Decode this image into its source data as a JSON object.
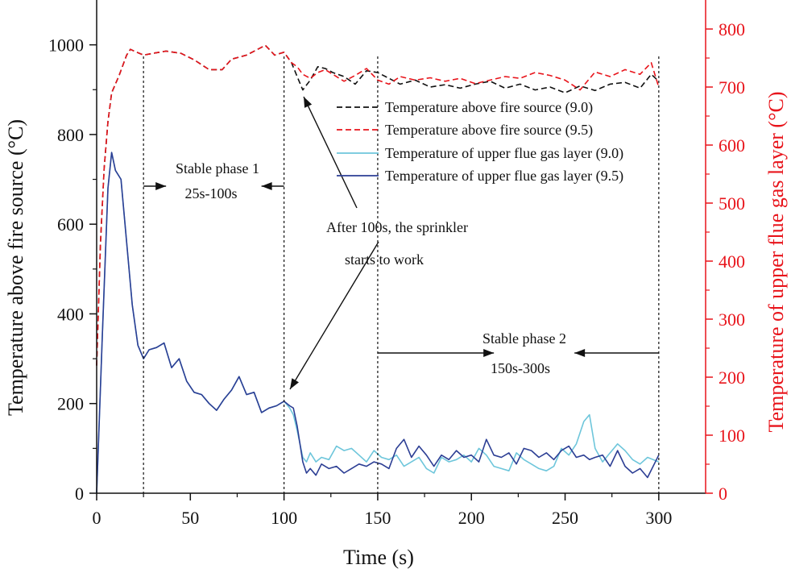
{
  "chart_data": {
    "type": "line",
    "xlabel": "Time (s)",
    "ylabel_left": "Temperature above fire source (°C)",
    "ylabel_right": "Temperature of upper flue gas layer (°C)",
    "xlim": [
      0,
      325
    ],
    "ylim_left": [
      0,
      1100
    ],
    "ylim_right": [
      0,
      850
    ],
    "x_ticks": [
      0,
      50,
      100,
      150,
      200,
      250,
      300
    ],
    "y_left_ticks": [
      0,
      200,
      400,
      600,
      800,
      1000
    ],
    "y_right_ticks": [
      0,
      100,
      200,
      300,
      400,
      500,
      600,
      700,
      800
    ],
    "x_tick_labels": [
      "0",
      "50",
      "100",
      "150",
      "200",
      "250",
      "300"
    ],
    "y_left_tick_labels": [
      "0",
      "200",
      "400",
      "600",
      "800",
      "1000"
    ],
    "y_right_tick_labels": [
      "0",
      "100",
      "200",
      "300",
      "400",
      "500",
      "600",
      "700",
      "800"
    ],
    "series": [
      {
        "name": "Temperature above fire source (9.0)",
        "axis": "right",
        "color": "#111111",
        "dash": "dashed",
        "x": [
          0,
          2,
          4,
          6,
          8,
          12,
          16,
          18,
          20,
          25,
          30,
          37,
          45,
          52,
          60,
          67,
          72,
          80,
          90,
          95,
          100,
          104,
          107,
          110,
          114,
          118,
          122,
          126,
          132,
          138,
          144,
          150,
          156,
          162,
          170,
          178,
          186,
          194,
          202,
          210,
          218,
          226,
          234,
          242,
          250,
          258,
          266,
          274,
          282,
          290,
          296,
          300
        ],
        "y": [
          220,
          430,
          560,
          640,
          690,
          720,
          755,
          765,
          762,
          755,
          758,
          762,
          758,
          747,
          730,
          730,
          748,
          755,
          772,
          755,
          760,
          742,
          718,
          695,
          712,
          735,
          732,
          725,
          718,
          705,
          728,
          725,
          715,
          705,
          712,
          700,
          704,
          698,
          705,
          710,
          698,
          705,
          695,
          700,
          690,
          702,
          694,
          705,
          708,
          698,
          722,
          710
        ]
      },
      {
        "name": "Temperature above fire source (9.5)",
        "axis": "right",
        "color": "#e8141b",
        "dash": "dashed",
        "x": [
          0,
          2,
          4,
          6,
          8,
          12,
          16,
          18,
          20,
          25,
          30,
          37,
          45,
          52,
          60,
          67,
          72,
          80,
          90,
          95,
          100,
          104,
          107,
          110,
          114,
          118,
          122,
          126,
          132,
          138,
          144,
          150,
          156,
          162,
          170,
          178,
          186,
          194,
          202,
          210,
          218,
          226,
          234,
          242,
          250,
          258,
          266,
          274,
          282,
          290,
          296,
          300
        ],
        "y": [
          220,
          430,
          560,
          640,
          690,
          720,
          755,
          765,
          762,
          755,
          758,
          762,
          758,
          747,
          730,
          730,
          748,
          755,
          772,
          755,
          760,
          742,
          735,
          722,
          715,
          725,
          730,
          722,
          710,
          720,
          732,
          712,
          705,
          718,
          712,
          716,
          710,
          715,
          706,
          712,
          718,
          715,
          725,
          720,
          712,
          695,
          726,
          718,
          730,
          722,
          742,
          700
        ]
      },
      {
        "name": "Temperature of upper flue gas layer (9.0)",
        "axis": "left",
        "color": "#6ec6db",
        "dash": "solid",
        "x": [
          0,
          3,
          6,
          8,
          10,
          13,
          16,
          19,
          22,
          25,
          28,
          32,
          36,
          40,
          44,
          48,
          52,
          56,
          60,
          64,
          68,
          72,
          76,
          80,
          84,
          88,
          92,
          96,
          100,
          103,
          105,
          107,
          110,
          112,
          114,
          117,
          120,
          124,
          128,
          132,
          136,
          140,
          144,
          148,
          152,
          156,
          160,
          164,
          168,
          172,
          176,
          180,
          184,
          188,
          192,
          196,
          200,
          204,
          208,
          212,
          216,
          220,
          224,
          228,
          232,
          236,
          240,
          244,
          248,
          252,
          256,
          260,
          263,
          266,
          270,
          274,
          278,
          282,
          286,
          290,
          294,
          300
        ],
        "y": [
          0,
          350,
          680,
          760,
          720,
          700,
          560,
          420,
          330,
          300,
          320,
          325,
          335,
          280,
          300,
          250,
          225,
          220,
          200,
          185,
          210,
          230,
          260,
          220,
          225,
          180,
          190,
          195,
          205,
          190,
          175,
          140,
          80,
          70,
          90,
          70,
          80,
          75,
          105,
          95,
          100,
          85,
          70,
          95,
          80,
          75,
          85,
          60,
          70,
          80,
          55,
          45,
          80,
          70,
          75,
          85,
          70,
          100,
          85,
          60,
          55,
          50,
          90,
          75,
          65,
          55,
          50,
          60,
          100,
          85,
          110,
          160,
          175,
          100,
          70,
          90,
          110,
          95,
          75,
          65,
          80,
          70
        ]
      },
      {
        "name": "Temperature of upper flue gas layer (9.5)",
        "axis": "left",
        "color": "#2c3e94",
        "dash": "solid",
        "x": [
          0,
          3,
          6,
          8,
          10,
          13,
          16,
          19,
          22,
          25,
          28,
          32,
          36,
          40,
          44,
          48,
          52,
          56,
          60,
          64,
          68,
          72,
          76,
          80,
          84,
          88,
          92,
          96,
          100,
          103,
          105,
          107,
          110,
          112,
          114,
          117,
          120,
          124,
          128,
          132,
          136,
          140,
          144,
          148,
          152,
          156,
          160,
          164,
          168,
          172,
          176,
          180,
          184,
          188,
          192,
          196,
          200,
          204,
          208,
          212,
          216,
          220,
          224,
          228,
          232,
          236,
          240,
          244,
          248,
          252,
          256,
          260,
          263,
          266,
          270,
          274,
          278,
          282,
          286,
          290,
          294,
          300
        ],
        "y": [
          0,
          350,
          680,
          760,
          720,
          700,
          560,
          420,
          330,
          300,
          320,
          325,
          335,
          280,
          300,
          250,
          225,
          220,
          200,
          185,
          210,
          230,
          260,
          220,
          225,
          180,
          190,
          195,
          205,
          195,
          190,
          150,
          70,
          45,
          55,
          40,
          65,
          55,
          60,
          45,
          55,
          65,
          60,
          70,
          65,
          55,
          100,
          120,
          80,
          105,
          85,
          60,
          85,
          75,
          95,
          80,
          85,
          70,
          120,
          85,
          80,
          90,
          65,
          100,
          95,
          80,
          90,
          75,
          95,
          105,
          80,
          85,
          75,
          80,
          85,
          60,
          95,
          60,
          45,
          55,
          35,
          85
        ]
      }
    ],
    "legend": {
      "position": "top-right",
      "entries": [
        "Temperature above fire source (9.0)",
        "Temperature above fire source (9.5)",
        "Temperature of upper flue gas layer (9.0)",
        "Temperature of upper flue gas layer (9.5)"
      ]
    },
    "vertical_markers": [
      25,
      100,
      150,
      300
    ],
    "annotations": [
      {
        "id": "stable1",
        "lines": [
          "Stable phase 1",
          "25s-100s"
        ],
        "range": [
          25,
          100
        ]
      },
      {
        "id": "stable2",
        "lines": [
          "Stable phase 2",
          "150s-300s"
        ],
        "range": [
          150,
          300
        ]
      },
      {
        "id": "sprinkler",
        "lines": [
          "After 100s, the sprinkler",
          "starts to work"
        ]
      }
    ]
  }
}
